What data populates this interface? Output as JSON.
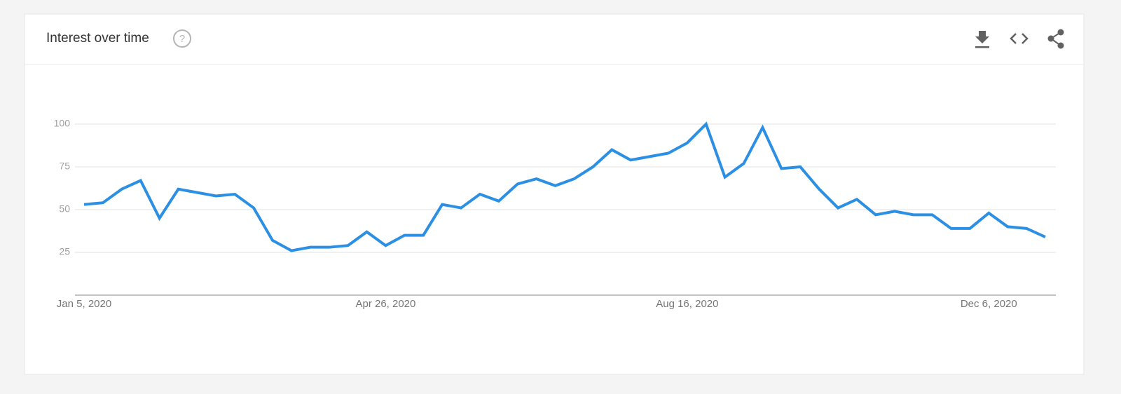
{
  "chart_data": {
    "type": "line",
    "title": "Interest over time",
    "categories": [
      "Jan 5, 2020",
      null,
      null,
      null,
      null,
      null,
      null,
      null,
      null,
      null,
      null,
      null,
      null,
      null,
      null,
      null,
      "Apr 26, 2020",
      null,
      null,
      null,
      null,
      null,
      null,
      null,
      null,
      null,
      null,
      null,
      null,
      null,
      null,
      null,
      "Aug 16, 2020",
      null,
      null,
      null,
      null,
      null,
      null,
      null,
      null,
      null,
      null,
      null,
      null,
      null,
      null,
      null,
      "Dec 6, 2020",
      null,
      null,
      null
    ],
    "values": [
      53,
      54,
      62,
      67,
      45,
      62,
      60,
      58,
      59,
      51,
      32,
      26,
      28,
      28,
      29,
      37,
      29,
      35,
      35,
      53,
      51,
      59,
      55,
      65,
      68,
      64,
      68,
      75,
      85,
      79,
      81,
      83,
      89,
      100,
      69,
      77,
      98,
      74,
      75,
      62,
      51,
      56,
      47,
      49,
      47,
      47,
      39,
      39,
      48,
      40,
      39,
      34
    ],
    "color": "#2b8fe3",
    "ylim": [
      0,
      100
    ],
    "yticks": [
      25,
      50,
      75,
      100
    ],
    "grid": true
  }
}
